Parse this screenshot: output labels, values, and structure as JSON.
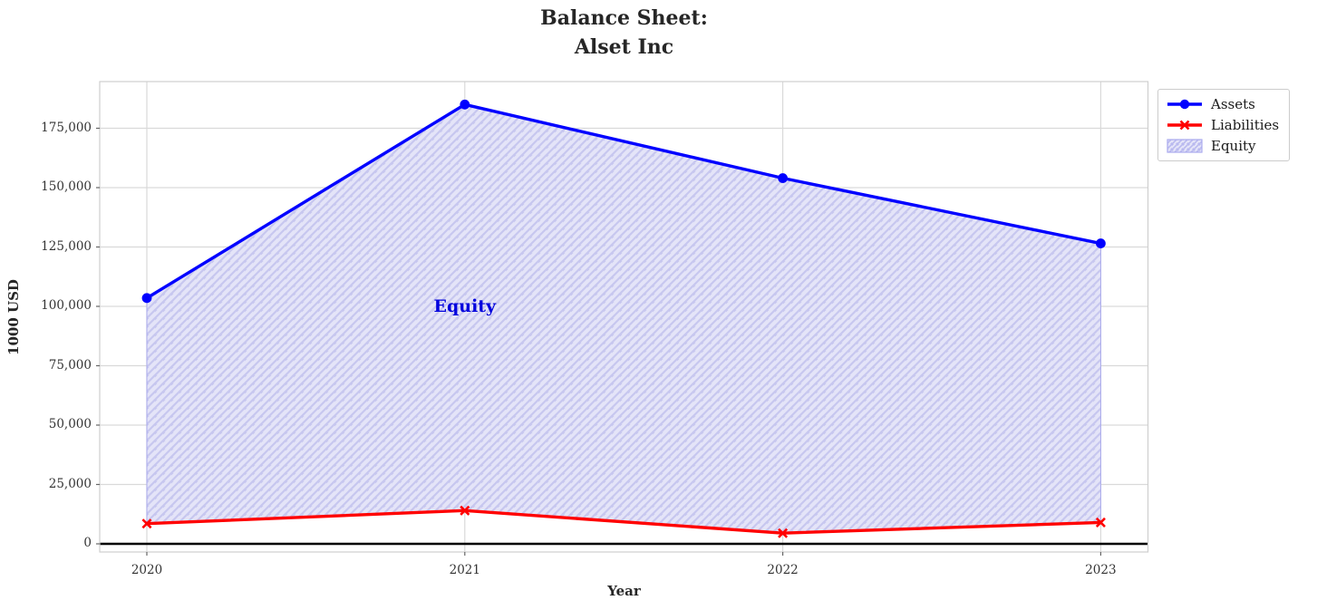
{
  "chart_data": {
    "type": "line",
    "title": "Balance Sheet:\nAlset Inc",
    "xlabel": "Year",
    "ylabel": "1000 USD",
    "categories": [
      "2020",
      "2021",
      "2022",
      "2023"
    ],
    "series": [
      {
        "name": "Assets",
        "color": "#0000ff",
        "marker": "circle",
        "values": [
          103500,
          185000,
          154000,
          126500
        ]
      },
      {
        "name": "Liabilities",
        "color": "#ff0000",
        "marker": "x",
        "values": [
          8500,
          14000,
          4500,
          9000
        ]
      }
    ],
    "area": {
      "name": "Equity",
      "between": [
        "Liabilities",
        "Assets"
      ],
      "values": [
        95000,
        171000,
        149500,
        117500
      ],
      "fill_color": "#e4e4f8",
      "hatch": "//",
      "hatch_color": "#c7c7ef",
      "edge_color": "#aaaaee"
    },
    "annotation": {
      "text": "Equity",
      "x": "2021",
      "y": 100000,
      "color": "#0000dd"
    },
    "ytick_values": [
      0,
      25000,
      50000,
      75000,
      100000,
      125000,
      150000,
      175000
    ],
    "ytick_labels": [
      "0",
      "25,000",
      "50,000",
      "75,000",
      "100,000",
      "125,000",
      "150,000",
      "175,000"
    ],
    "ylim": [
      -4000,
      194500
    ],
    "grid": true,
    "grid_color": "#d9d9d9",
    "spine_color": "#cfcfcf",
    "zero_line_color": "#000000",
    "legend_entries": [
      "Assets",
      "Liabilities",
      "Equity"
    ],
    "legend_position": "upper-right-outside"
  }
}
